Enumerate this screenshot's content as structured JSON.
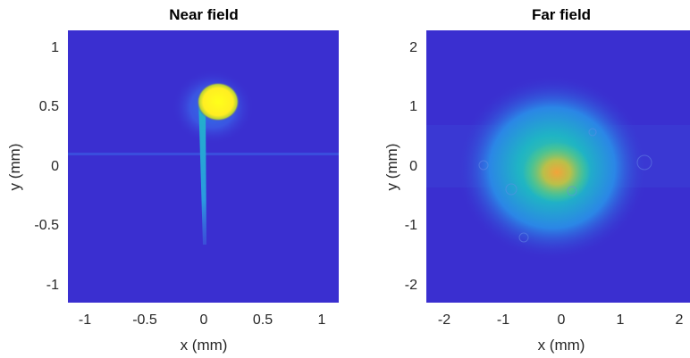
{
  "chart_data": [
    {
      "type": "heatmap",
      "title": "Near field",
      "xlabel": "x (mm)",
      "ylabel": "y (mm)",
      "xlim": [
        -1.15,
        1.15
      ],
      "ylim": [
        -1.15,
        1.15
      ],
      "xticks": [
        -1,
        -0.5,
        0,
        0.5,
        1
      ],
      "yticks": [
        -1,
        -0.5,
        0,
        0.5,
        1
      ],
      "xtick_labels": [
        "-1",
        "-0.5",
        "0",
        "0.5",
        "1"
      ],
      "ytick_labels": [
        "-1",
        "-0.5",
        "0",
        "0.5",
        "1"
      ],
      "colormap": "parula",
      "background_color": "#3a2fd0",
      "features": [
        {
          "kind": "saturated spot",
          "x": 0.12,
          "y": 0.55,
          "rx": 0.14,
          "ry": 0.12,
          "intensity": 1.0
        },
        {
          "kind": "halo",
          "x": 0.08,
          "y": 0.5,
          "rx": 0.28,
          "ry": 0.26,
          "intensity": 0.35
        },
        {
          "kind": "streak",
          "x0": -0.02,
          "y0": 0.5,
          "x1": 0.0,
          "y1": -0.68,
          "intensity": 0.45
        },
        {
          "kind": "horizontal line",
          "y": 0.08,
          "intensity": 0.12
        }
      ]
    },
    {
      "type": "heatmap",
      "title": "Far field",
      "xlabel": "x (mm)",
      "ylabel": "y (mm)",
      "xlim": [
        -2.3,
        2.3
      ],
      "ylim": [
        -2.3,
        2.3
      ],
      "xticks": [
        -2,
        -1,
        0,
        1,
        2
      ],
      "yticks": [
        -2,
        -1,
        0,
        1,
        2
      ],
      "xtick_labels": [
        "-2",
        "-1",
        "0",
        "1",
        "2"
      ],
      "ytick_labels": [
        "-2",
        "-1",
        "0",
        "1",
        "2"
      ],
      "colormap": "parula",
      "background_color": "#3a2fd0",
      "features": [
        {
          "kind": "broad spot",
          "x": -0.05,
          "y": 0.0,
          "rx": 1.5,
          "ry": 1.4,
          "intensity": 0.55
        },
        {
          "kind": "peak",
          "x": 0.0,
          "y": -0.1,
          "rx": 0.5,
          "ry": 0.45,
          "intensity": 0.7
        }
      ]
    }
  ]
}
